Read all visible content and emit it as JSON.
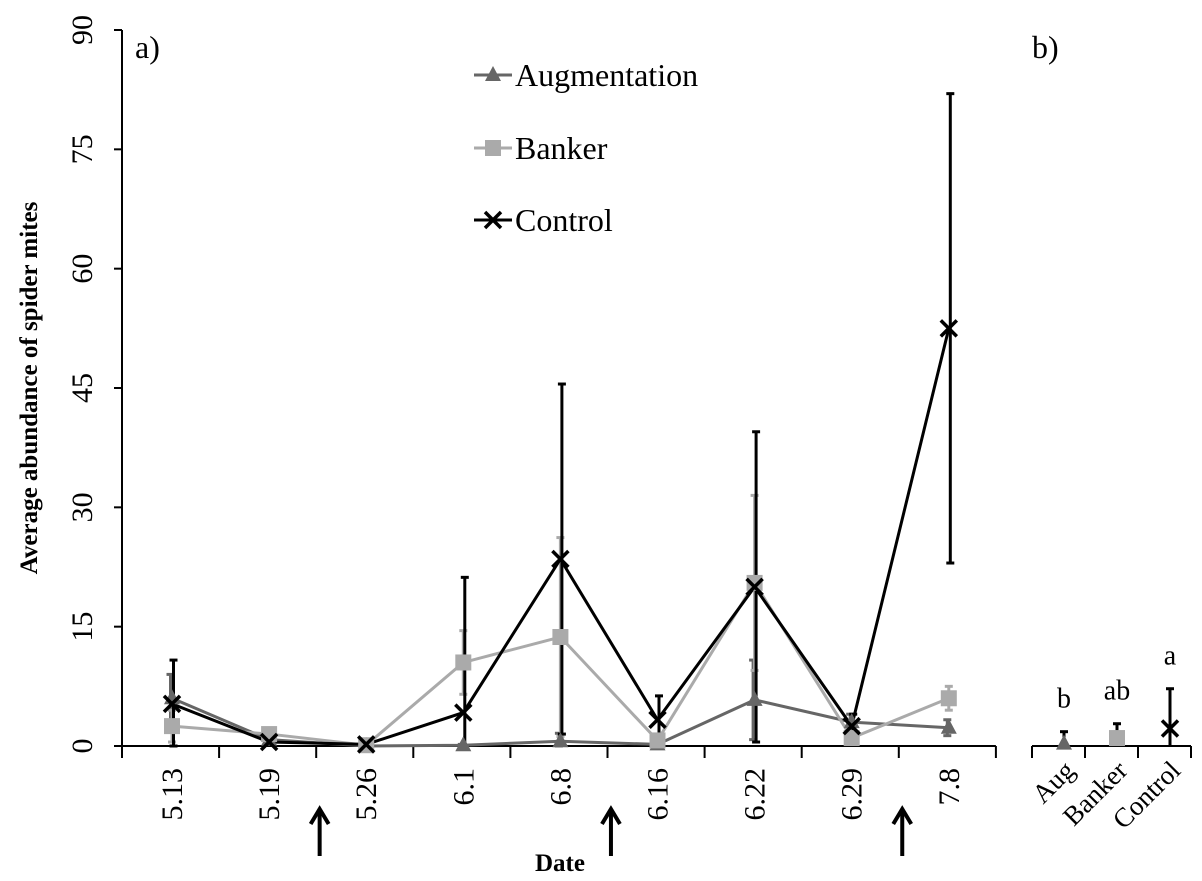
{
  "chart_data": [
    {
      "panel_label": "a)",
      "type": "line",
      "xlabel": "Date",
      "ylabel": "Average abundance of spider mites",
      "categories": [
        "5.13",
        "5.19",
        "5.26",
        "6.1",
        "6.8",
        "6.16",
        "6.22",
        "6.29",
        "7.8"
      ],
      "ylim": [
        0,
        90
      ],
      "yticks": [
        "0",
        "15",
        "30",
        "45",
        "60",
        "75",
        "90"
      ],
      "arrows": [
        [
          "5.19",
          "5.26"
        ],
        [
          "6.8",
          "6.16"
        ],
        [
          "6.29",
          "7.8"
        ]
      ],
      "legend_position": "top-center",
      "series": [
        {
          "name": "Augmentation",
          "color": "#666666",
          "marker": "triangle",
          "values": [
            6.0,
            0.8,
            0.0,
            0.1,
            0.6,
            0.2,
            5.8,
            3.0,
            2.3
          ],
          "error": [
            3.0,
            0.5,
            0.0,
            0.1,
            1.0,
            0.2,
            5.0,
            1.0,
            1.0
          ]
        },
        {
          "name": "Banker",
          "color": "#aaaaaa",
          "marker": "square",
          "values": [
            2.5,
            1.5,
            0.1,
            10.5,
            13.7,
            0.7,
            20.5,
            1.0,
            6.0
          ],
          "error": [
            2.0,
            0.5,
            0.1,
            4.0,
            12.5,
            0.5,
            11.0,
            0.8,
            1.5
          ]
        },
        {
          "name": "Control",
          "color": "#000000",
          "marker": "x",
          "values": [
            5.3,
            0.5,
            0.2,
            4.2,
            23.5,
            3.3,
            20.0,
            2.5,
            52.5
          ],
          "error": [
            5.5,
            0.3,
            0.1,
            17.0,
            22.0,
            3.0,
            19.5,
            1.5,
            29.5
          ]
        }
      ]
    },
    {
      "panel_label": "b)",
      "type": "scatter",
      "categories": [
        "Aug",
        "Banker",
        "Control"
      ],
      "ylim": [
        0,
        90
      ],
      "points": [
        {
          "category": "Aug",
          "value": 0.3,
          "error": 1.5,
          "marker": "triangle",
          "color": "#666666",
          "letter": "b"
        },
        {
          "category": "Banker",
          "value": 1.0,
          "error": 1.8,
          "marker": "square",
          "color": "#aaaaaa",
          "letter": "ab"
        },
        {
          "category": "Control",
          "value": 2.2,
          "error": 5.0,
          "marker": "x",
          "color": "#000000",
          "letter": "a"
        }
      ]
    }
  ]
}
